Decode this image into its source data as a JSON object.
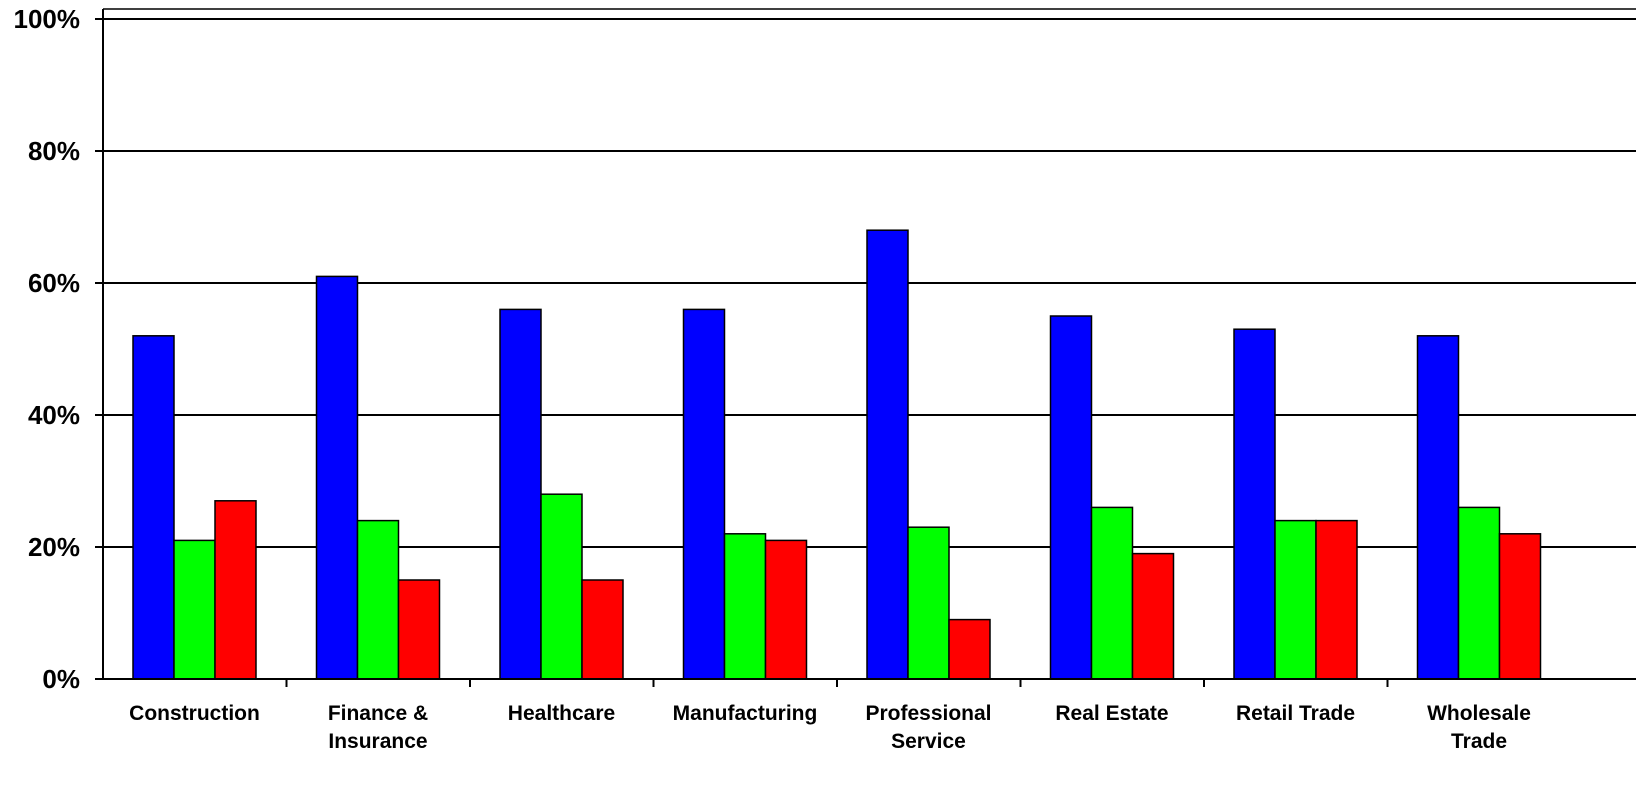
{
  "chart_data": {
    "type": "bar",
    "title": "",
    "xlabel": "",
    "ylabel": "",
    "categories": [
      "Construction",
      "Finance & Insurance",
      "Healthcare",
      "Manufacturing",
      "Professional Service",
      "Real Estate",
      "Retail Trade",
      "Wholesale Trade"
    ],
    "category_lines": [
      [
        "Construction"
      ],
      [
        "Finance &",
        "Insurance"
      ],
      [
        "Healthcare"
      ],
      [
        "Manufacturing"
      ],
      [
        "Professional",
        "Service"
      ],
      [
        "Real Estate"
      ],
      [
        "Retail Trade"
      ],
      [
        "Wholesale",
        "Trade"
      ]
    ],
    "series": [
      {
        "color": "#0000ff",
        "values": [
          52,
          61,
          56,
          56,
          68,
          55,
          53,
          52
        ]
      },
      {
        "color": "#00ff00",
        "values": [
          21,
          24,
          28,
          22,
          23,
          26,
          24,
          26
        ]
      },
      {
        "color": "#ff0000",
        "values": [
          27,
          15,
          15,
          21,
          9,
          19,
          24,
          22
        ]
      }
    ],
    "ylim": [
      0,
      100
    ],
    "yticks": [
      0,
      20,
      40,
      60,
      80,
      100
    ],
    "ytick_labels": [
      "0%",
      "20%",
      "40%",
      "60%",
      "80%",
      "100%"
    ],
    "grid": true,
    "legend": "none"
  }
}
